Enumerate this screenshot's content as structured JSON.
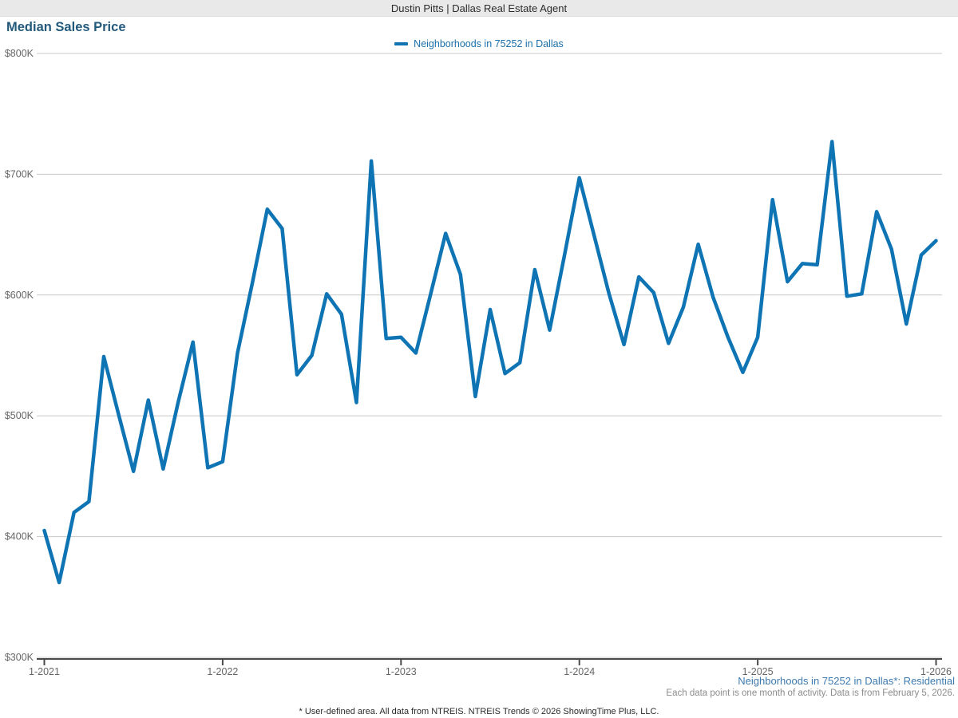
{
  "header": {
    "agent_banner": "Dustin Pitts | Dallas Real Estate Agent"
  },
  "legend": {
    "label": "Neighborhoods in 75252 in Dallas"
  },
  "footnotes": {
    "series_note": "Neighborhoods in 75252 in Dallas*: Residential",
    "data_note": "Each data point is one month of activity. Data is from February 5, 2026.",
    "copyright": "* User-defined area. All data from NTREIS. NTREIS Trends © 2026 ShowingTime Plus, LLC."
  },
  "colors": {
    "series_line": "#0f74b3",
    "title_text": "#235a7c",
    "legend_text": "#1a6fa8",
    "gridline": "#c8c8c8",
    "axis_line": "#4a4a4a",
    "tick_label": "#666666",
    "banner_bg": "#e9e9e9",
    "footnote_blue": "#3d7ab0",
    "footnote_gray": "#8c8c8c"
  },
  "chart_data": {
    "type": "line",
    "title": "Median Sales Price",
    "xlabel": "",
    "ylabel": "",
    "units": "USD thousands",
    "x_start_month": "1-2021",
    "x_end_month": "1-2026",
    "x_tick_labels": [
      "1-2021",
      "1-2022",
      "1-2023",
      "1-2024",
      "1-2025",
      "1-2026"
    ],
    "y_tick_labels": [
      "$800K",
      "$700K",
      "$600K",
      "$500K",
      "$400K",
      "$300K"
    ],
    "y_ticks": [
      800,
      700,
      600,
      500,
      400,
      300
    ],
    "ylim": [
      300,
      800
    ],
    "grid": true,
    "legend_position": "top-center",
    "series": [
      {
        "name": "Neighborhoods in 75252 in Dallas",
        "points_per_month": 1,
        "values": [
          405,
          362,
          420,
          429,
          549,
          501,
          454,
          513,
          456,
          511,
          561,
          457,
          462,
          552,
          610,
          671,
          655,
          534,
          550,
          601,
          584,
          511,
          711,
          564,
          565,
          552,
          601,
          651,
          617,
          516,
          588,
          535,
          544,
          621,
          571,
          633,
          697,
          649,
          601,
          559,
          615,
          602,
          560,
          590,
          642,
          598,
          565,
          536,
          565,
          679,
          611,
          626,
          625,
          727,
          599,
          601,
          669,
          638,
          576,
          633,
          645
        ]
      }
    ]
  }
}
